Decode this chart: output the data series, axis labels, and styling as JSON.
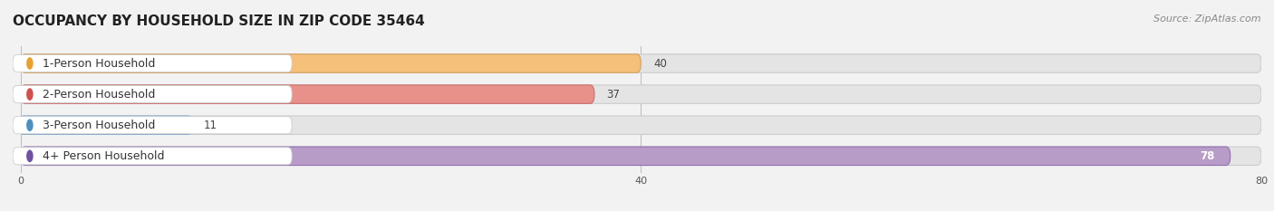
{
  "title": "OCCUPANCY BY HOUSEHOLD SIZE IN ZIP CODE 35464",
  "source": "Source: ZipAtlas.com",
  "categories": [
    "1-Person Household",
    "2-Person Household",
    "3-Person Household",
    "4+ Person Household"
  ],
  "values": [
    40,
    37,
    11,
    78
  ],
  "bar_colors": [
    "#f5c07a",
    "#e8918a",
    "#aacbea",
    "#b89cc8"
  ],
  "bar_edge_colors": [
    "#d4a060",
    "#c97070",
    "#80aad0",
    "#9070b0"
  ],
  "label_dot_colors": [
    "#e8a030",
    "#d05050",
    "#5090c0",
    "#7050a0"
  ],
  "xlim": [
    0,
    80
  ],
  "xticks": [
    0,
    40,
    80
  ],
  "background_color": "#f2f2f2",
  "bar_bg_color": "#e4e4e4",
  "bar_bg_edge_color": "#cccccc",
  "title_fontsize": 11,
  "label_fontsize": 9,
  "value_fontsize": 8.5,
  "source_fontsize": 8
}
